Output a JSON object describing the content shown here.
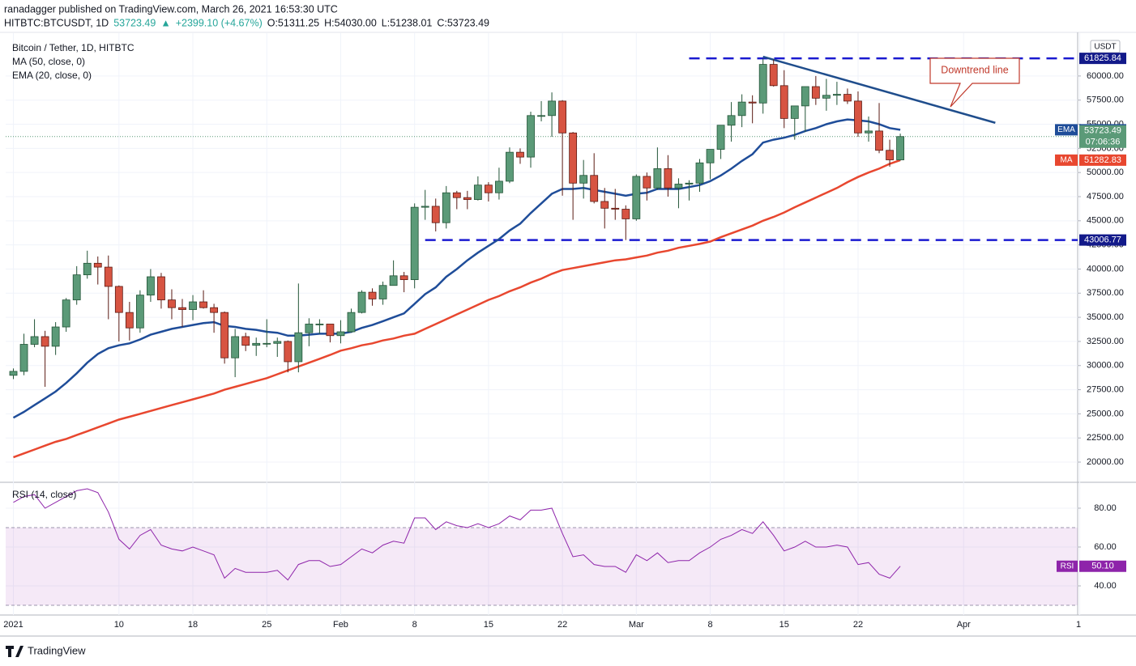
{
  "header": {
    "published": "ranadagger published on TradingView.com, March 26, 2021 16:53:30 UTC",
    "quote": [
      "HITBTC:BTCUSDT, 1D",
      "53723.49",
      "▲",
      "+2399.10 (+4.67%)",
      "O:51311.25",
      "H:54030.00",
      "L:51238.01",
      "C:53723.49"
    ],
    "brand": "TradingView"
  },
  "chart_data": [
    {
      "type": "candlestick",
      "title": "Bitcoin / Tether, 1D, HITBTC",
      "currency": "USDT",
      "countdown": "07:06:36",
      "up_color": "#5b9a78",
      "down_color": "#d75442",
      "x": [
        0,
        1,
        2,
        3,
        4,
        5,
        6,
        7,
        8,
        9,
        10,
        11,
        12,
        13,
        14,
        15,
        16,
        17,
        18,
        19,
        20,
        21,
        22,
        23,
        24,
        25,
        26,
        27,
        28,
        29,
        30,
        31,
        32,
        33,
        34,
        35,
        36,
        37,
        38,
        39,
        40,
        41,
        42,
        43,
        44,
        45,
        46,
        47,
        48,
        49,
        50,
        51,
        52,
        53,
        54,
        55,
        56,
        57,
        58,
        59,
        60,
        61,
        62,
        63,
        64,
        65,
        66,
        67,
        68,
        69,
        70,
        71,
        72,
        73,
        74,
        75,
        76,
        77,
        78,
        79,
        80,
        81,
        82,
        83,
        84
      ],
      "open": [
        28990,
        29400,
        32200,
        33000,
        32000,
        34000,
        36800,
        39400,
        40600,
        40200,
        38200,
        35500,
        33900,
        37300,
        39200,
        36800,
        36000,
        35800,
        36600,
        36000,
        35500,
        30800,
        33000,
        32100,
        32300,
        32300,
        32500,
        30400,
        33400,
        34300,
        34300,
        33100,
        33500,
        35500,
        37600,
        36900,
        38300,
        39300,
        38900,
        46400,
        46500,
        44800,
        47900,
        47400,
        47200,
        48700,
        47900,
        49100,
        52100,
        51600,
        55900,
        55900,
        57400,
        54100,
        48900,
        49700,
        47000,
        46300,
        46200,
        45200,
        49600,
        48400,
        50400,
        48400,
        48800,
        48900,
        51000,
        52400,
        54900,
        55900,
        57300,
        57200,
        61200,
        59000,
        55600,
        56900,
        58900,
        57700,
        58000,
        58100,
        57400,
        54100,
        54300,
        52300,
        51311.25
      ],
      "high": [
        29700,
        33300,
        34800,
        33600,
        34500,
        37000,
        40300,
        41900,
        41300,
        41400,
        38300,
        36600,
        37800,
        40000,
        39600,
        37900,
        36900,
        37300,
        37800,
        36400,
        35600,
        33800,
        33400,
        32900,
        34800,
        32900,
        32600,
        38500,
        34900,
        34800,
        34300,
        34700,
        35900,
        37800,
        38000,
        38700,
        40900,
        39700,
        46800,
        48200,
        47300,
        48600,
        48100,
        48100,
        49600,
        49000,
        50500,
        52600,
        52500,
        56300,
        57400,
        58300,
        57500,
        54200,
        51300,
        52000,
        48400,
        48300,
        46600,
        49800,
        50000,
        52600,
        51800,
        49400,
        49200,
        51400,
        52400,
        54900,
        57300,
        58100,
        58000,
        61800,
        61700,
        60600,
        56900,
        58900,
        60000,
        59700,
        59400,
        58700,
        58400,
        55800,
        57200,
        53400,
        54030
      ],
      "low": [
        28600,
        29000,
        31900,
        27800,
        31100,
        33500,
        36300,
        39000,
        38400,
        34800,
        32500,
        32600,
        33400,
        36600,
        35900,
        34800,
        34000,
        34700,
        35900,
        33400,
        30200,
        28800,
        31500,
        31000,
        31900,
        30900,
        29300,
        29300,
        32000,
        33300,
        32400,
        32300,
        33400,
        35400,
        36200,
        36300,
        38300,
        37600,
        38000,
        45100,
        43900,
        44200,
        46200,
        46200,
        47100,
        47000,
        47200,
        48900,
        50900,
        50500,
        55300,
        53700,
        47600,
        45100,
        47300,
        46800,
        44200,
        45100,
        43000,
        45000,
        47100,
        48200,
        47500,
        46300,
        47100,
        48000,
        49300,
        51400,
        53200,
        54700,
        55100,
        56100,
        58900,
        54600,
        53400,
        54200,
        57000,
        56400,
        57000,
        57100,
        53700,
        53200,
        52000,
        50600,
        51238.01
      ],
      "close": [
        29400,
        32200,
        33000,
        32000,
        34000,
        36800,
        39400,
        40600,
        40200,
        38200,
        35500,
        33900,
        37300,
        39200,
        36800,
        36000,
        35800,
        36600,
        36000,
        35500,
        30800,
        33000,
        32100,
        32300,
        32300,
        32500,
        30400,
        33400,
        34300,
        34300,
        33100,
        33500,
        35500,
        37600,
        36900,
        38300,
        39300,
        38900,
        46400,
        46500,
        44800,
        47900,
        47400,
        47200,
        48700,
        47900,
        49100,
        52100,
        51600,
        55900,
        55900,
        57400,
        54100,
        48900,
        49700,
        47000,
        46300,
        46200,
        45200,
        49600,
        48400,
        50400,
        48400,
        48800,
        48900,
        51000,
        52400,
        54900,
        55900,
        57300,
        57200,
        61200,
        59000,
        55600,
        56900,
        58900,
        57700,
        58000,
        58100,
        57400,
        54100,
        54300,
        52300,
        51311.25,
        53723.49
      ],
      "series": [
        {
          "name": "EMA (20, close, 0)",
          "tag": "EMA",
          "color": "#1f4d99",
          "values": [
            24600,
            25200,
            25900,
            26600,
            27300,
            28200,
            29200,
            30300,
            31200,
            31800,
            32100,
            32300,
            32700,
            33200,
            33500,
            33800,
            34000,
            34200,
            34400,
            34500,
            34100,
            34000,
            33800,
            33700,
            33500,
            33400,
            33100,
            33100,
            33200,
            33300,
            33300,
            33300,
            33500,
            33900,
            34200,
            34600,
            35000,
            35400,
            36400,
            37400,
            38100,
            39200,
            40000,
            40900,
            41700,
            42400,
            43100,
            44000,
            44700,
            45800,
            46800,
            47800,
            48300,
            48300,
            48400,
            48200,
            48000,
            47800,
            47600,
            47800,
            47900,
            48300,
            48300,
            48300,
            48500,
            48700,
            49100,
            49700,
            50400,
            51200,
            51900,
            53100,
            53400,
            53600,
            53900,
            54300,
            54600,
            55000,
            55300,
            55500,
            55400,
            55300,
            55000,
            54600,
            54426.96
          ]
        },
        {
          "name": "MA (50, close, 0)",
          "tag": "MA",
          "color": "#e8472f",
          "values": [
            20500,
            20900,
            21300,
            21700,
            22100,
            22400,
            22800,
            23200,
            23600,
            24000,
            24400,
            24700,
            25000,
            25300,
            25600,
            25900,
            26200,
            26500,
            26800,
            27100,
            27500,
            27800,
            28100,
            28400,
            28700,
            29100,
            29500,
            29900,
            30300,
            30700,
            31100,
            31550,
            31800,
            32100,
            32300,
            32600,
            32800,
            33100,
            33300,
            33800,
            34300,
            34800,
            35300,
            35800,
            36300,
            36800,
            37200,
            37700,
            38100,
            38600,
            39000,
            39500,
            39900,
            40100,
            40300,
            40500,
            40700,
            40900,
            41000,
            41200,
            41400,
            41700,
            41900,
            42200,
            42400,
            42600,
            42850,
            43300,
            43700,
            44100,
            44500,
            45000,
            45400,
            45860,
            46400,
            46900,
            47400,
            47900,
            48400,
            49000,
            49540,
            50000,
            50400,
            50900,
            51282.83
          ]
        }
      ],
      "levels": [
        {
          "value": 61825.84,
          "from": 64
        },
        {
          "value": 43006.77,
          "from": 39
        }
      ],
      "level_color": "#1a1ad0",
      "trendline": {
        "x": [
          71,
          93
        ],
        "y": [
          62000,
          55150
        ],
        "color": "#1f4d8c"
      },
      "annotation": "Downtrend line",
      "xlim": [
        -0.73,
        100.8
      ],
      "xticks": [
        {
          "value": 0,
          "label": "2021"
        },
        10,
        {
          "value": 17,
          "label": "18"
        },
        {
          "value": 24,
          "label": "25"
        },
        {
          "value": 31,
          "label": "Feb"
        },
        {
          "value": 38,
          "label": "8"
        },
        {
          "value": 45,
          "label": "15"
        },
        {
          "value": 52,
          "label": "22"
        },
        {
          "value": 59,
          "label": "Mar"
        },
        {
          "value": 66,
          "label": "8"
        },
        {
          "value": 73,
          "label": "15"
        },
        {
          "value": 80,
          "label": "22"
        },
        {
          "value": 90,
          "label": "Apr"
        },
        {
          "value": 101,
          "label": "1"
        }
      ],
      "ylim": [
        17990,
        64435
      ],
      "yticks": [
        {
          "value": 20000,
          "label": "20000.00"
        },
        {
          "value": 22500,
          "label": "22500.00"
        },
        {
          "value": 25000,
          "label": "25000.00"
        },
        {
          "value": 27500,
          "label": "27500.00"
        },
        {
          "value": 30000,
          "label": "30000.00"
        },
        {
          "value": 32500,
          "label": "32500.00"
        },
        {
          "value": 35000,
          "label": "35000.00"
        },
        {
          "value": 37500,
          "label": "37500.00"
        },
        {
          "value": 40000,
          "label": "40000.00"
        },
        {
          "value": 42500,
          "label": "42500.00"
        },
        {
          "value": 45000,
          "label": "45000.00"
        },
        {
          "value": 47500,
          "label": "47500.00"
        },
        {
          "value": 50000,
          "label": "50000.00"
        },
        {
          "value": 52500,
          "label": "52500.00"
        },
        {
          "value": 55000,
          "label": "55000.00"
        },
        {
          "value": 57500,
          "label": "57500.00"
        },
        {
          "value": 60000,
          "label": "60000.00"
        }
      ],
      "grid": true
    },
    {
      "type": "line",
      "title": "RSI (14, close)",
      "tag": "RSI",
      "color": "#8e24aa",
      "last_value_label": "50.10",
      "values": [
        83,
        86,
        87,
        80,
        83,
        86,
        89,
        90,
        88,
        78,
        64,
        59,
        66,
        69,
        61,
        59,
        58,
        60,
        58,
        56,
        44,
        49,
        47,
        47,
        47,
        48,
        43,
        51,
        53,
        53,
        50,
        51,
        55,
        59,
        57,
        61,
        63,
        62,
        75,
        75,
        69,
        73,
        71,
        70,
        72,
        70,
        72,
        76,
        74,
        79,
        79,
        80,
        67,
        55,
        56,
        51,
        50,
        50,
        47,
        56,
        53,
        57,
        52,
        53,
        53,
        57,
        60,
        64,
        66,
        69,
        67,
        73,
        66,
        58,
        60,
        63,
        60,
        60,
        61,
        60,
        51,
        52,
        46,
        44,
        50.1
      ],
      "band": [
        30,
        70
      ],
      "ylim": [
        25,
        92.9
      ],
      "yticks": [
        {
          "value": 40,
          "label": "40.00"
        },
        {
          "value": 60,
          "label": "60.00"
        },
        {
          "value": 80,
          "label": "80.00"
        }
      ]
    }
  ]
}
